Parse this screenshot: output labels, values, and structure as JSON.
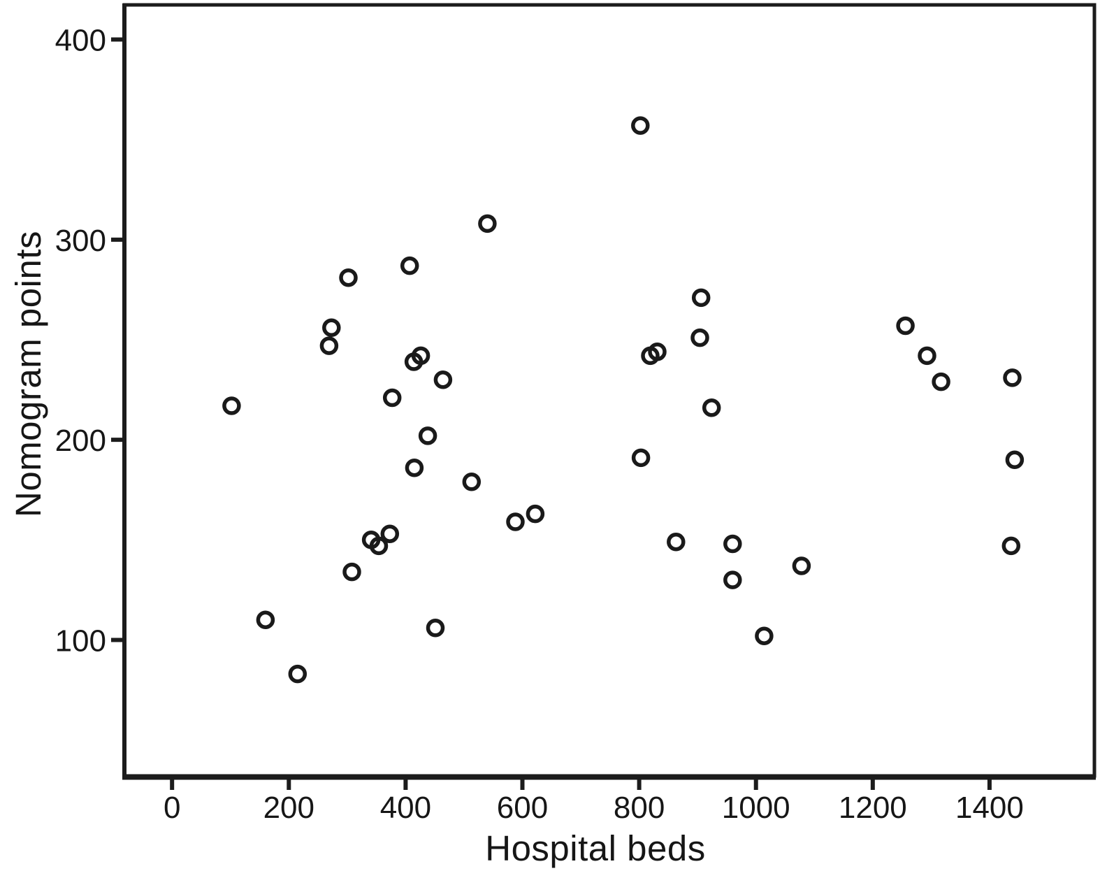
{
  "chart_data": {
    "type": "scatter",
    "title": "",
    "xlabel": "Hospital beds",
    "ylabel": "Nomogram points",
    "x_ticks": [
      0,
      200,
      400,
      600,
      800,
      1000,
      1200,
      1400
    ],
    "y_ticks": [
      100,
      200,
      300,
      400
    ],
    "xlim": [
      -84,
      1582
    ],
    "ylim": [
      31,
      418
    ],
    "grid": false,
    "legend": "none",
    "marker": {
      "shape": "open-circle",
      "color": "#1a1a1a",
      "radius_px": 10.5,
      "stroke_px": 5.5
    },
    "axis_color": "#1c1c1c",
    "background_color": "#ffffff",
    "points": [
      [
        102,
        217
      ],
      [
        160,
        110
      ],
      [
        215,
        83
      ],
      [
        269,
        247
      ],
      [
        273,
        256
      ],
      [
        302,
        281
      ],
      [
        308,
        134
      ],
      [
        341,
        150
      ],
      [
        354,
        147
      ],
      [
        373,
        153
      ],
      [
        377,
        221
      ],
      [
        407,
        287
      ],
      [
        414,
        239
      ],
      [
        415,
        186
      ],
      [
        426,
        242
      ],
      [
        438,
        202
      ],
      [
        451,
        106
      ],
      [
        464,
        230
      ],
      [
        513,
        179
      ],
      [
        540,
        308
      ],
      [
        588,
        159
      ],
      [
        622,
        163
      ],
      [
        802,
        357
      ],
      [
        803,
        191
      ],
      [
        819,
        242
      ],
      [
        831,
        244
      ],
      [
        863,
        149
      ],
      [
        904,
        251
      ],
      [
        906,
        271
      ],
      [
        924,
        216
      ],
      [
        960,
        130
      ],
      [
        960,
        148
      ],
      [
        1014,
        102
      ],
      [
        1078,
        137
      ],
      [
        1256,
        257
      ],
      [
        1293,
        242
      ],
      [
        1317,
        229
      ],
      [
        1437,
        147
      ],
      [
        1439,
        231
      ],
      [
        1443,
        190
      ]
    ]
  }
}
